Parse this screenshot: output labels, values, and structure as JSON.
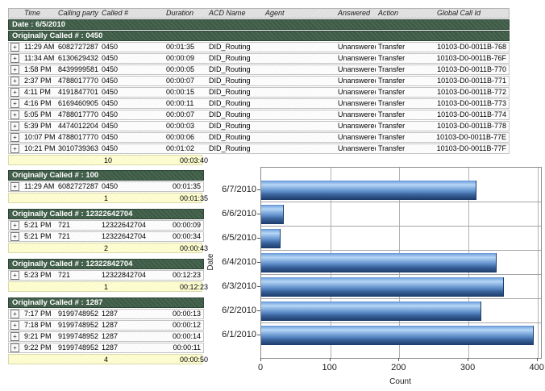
{
  "table": {
    "headers": [
      "Time",
      "Calling party #",
      "Called #",
      "Duration",
      "ACD Name",
      "Agent",
      "Answered",
      "Action",
      "Global Call Id"
    ],
    "date_label": "Date : 6/5/2010",
    "group_label": "Originally Called # : 0450",
    "rows": [
      [
        "11:29 AM",
        "6082727287",
        "0450",
        "00:01:35",
        "DID_Routing",
        "",
        "Unanswered",
        "Transfer",
        "10103-D0-0011B-768"
      ],
      [
        "11:34 AM",
        "6130629432",
        "0450",
        "00:00:09",
        "DID_Routing",
        "",
        "Unanswered",
        "Transfer",
        "10103-D0-0011B-76F"
      ],
      [
        "1:58 PM",
        "8439999581",
        "0450",
        "00:00:05",
        "DID_Routing",
        "",
        "Unanswered",
        "Transfer",
        "10103-D0-0011B-770"
      ],
      [
        "2:37 PM",
        "4788017770",
        "0450",
        "00:00:07",
        "DID_Routing",
        "",
        "Unanswered",
        "Transfer",
        "10103-D0-0011B-771"
      ],
      [
        "4:11 PM",
        "4191847701",
        "0450",
        "00:00:15",
        "DID_Routing",
        "",
        "Unanswered",
        "Transfer",
        "10103-D0-0011B-772"
      ],
      [
        "4:16 PM",
        "6169460905",
        "0450",
        "00:00:11",
        "DID_Routing",
        "",
        "Unanswered",
        "Transfer",
        "10103-D0-0011B-773"
      ],
      [
        "5:05 PM",
        "4788017770",
        "0450",
        "00:00:07",
        "DID_Routing",
        "",
        "Unanswered",
        "Transfer",
        "10103-D0-0011B-774"
      ],
      [
        "5:39 PM",
        "4474012204",
        "0450",
        "00:00:03",
        "DID_Routing",
        "",
        "Unanswered",
        "Transfer",
        "10103-D0-0011B-778"
      ],
      [
        "10:07 PM",
        "4788017770",
        "0450",
        "00:00:06",
        "DID_Routing",
        "",
        "Unanswered",
        "Transfer",
        "10103-D0-0011B-77E"
      ],
      [
        "10:21 PM",
        "3010739363",
        "0450",
        "00:01:02",
        "DID_Routing",
        "",
        "Unanswered",
        "Transfer",
        "10103-D0-0011B-77F"
      ]
    ],
    "summary": {
      "count": "10",
      "total_duration": "00:03:40"
    }
  },
  "sections": [
    {
      "label": "Originally Called # : 100",
      "rows": [
        [
          "11:29 AM",
          "6082727287",
          "0450",
          "00:01:35"
        ]
      ],
      "summary": {
        "count": "1",
        "total_duration": "00:01:35"
      }
    },
    {
      "label": "Originally Called # : 12322642704",
      "rows": [
        [
          "5:21 PM",
          "721",
          "12322642704",
          "00:00:09"
        ],
        [
          "5:21 PM",
          "721",
          "12322642704",
          "00:00:34"
        ]
      ],
      "summary": {
        "count": "2",
        "total_duration": "00:00:43"
      }
    },
    {
      "label": "Originally Called # : 12322842704",
      "rows": [
        [
          "5:23 PM",
          "721",
          "12322842704",
          "00:12:23"
        ]
      ],
      "summary": {
        "count": "1",
        "total_duration": "00:12:23"
      }
    },
    {
      "label": "Originally Called # : 1287",
      "rows": [
        [
          "7:17 PM",
          "9199748952",
          "1287",
          "00:00:13"
        ],
        [
          "7:18 PM",
          "9199748952",
          "1287",
          "00:00:12"
        ],
        [
          "9:21 PM",
          "9199748952",
          "1287",
          "00:00:14"
        ],
        [
          "9:22 PM",
          "9199748952",
          "1287",
          "00:00:11"
        ]
      ],
      "summary": {
        "count": "4",
        "total_duration": "00:00:50"
      }
    }
  ],
  "icons": {
    "expand_glyph": "+"
  },
  "colors": {
    "group_band": "#41604a",
    "summary_bg": "#ffffd2",
    "header_bg": "#e4e4e4",
    "bar_blue": "#5e8fd0"
  },
  "chart_data": {
    "type": "bar",
    "orientation": "horizontal",
    "title": "",
    "categories": [
      "6/7/2010",
      "6/6/2010",
      "6/5/2010",
      "6/4/2010",
      "6/3/2010",
      "6/2/2010",
      "6/1/2010"
    ],
    "values": [
      310,
      32,
      27,
      340,
      350,
      318,
      393
    ],
    "xlabel": "Count",
    "ylabel": "Date",
    "xlim": [
      0,
      405
    ],
    "xticks": [
      0,
      100,
      200,
      300,
      400
    ],
    "grid": true,
    "legend": "none"
  }
}
